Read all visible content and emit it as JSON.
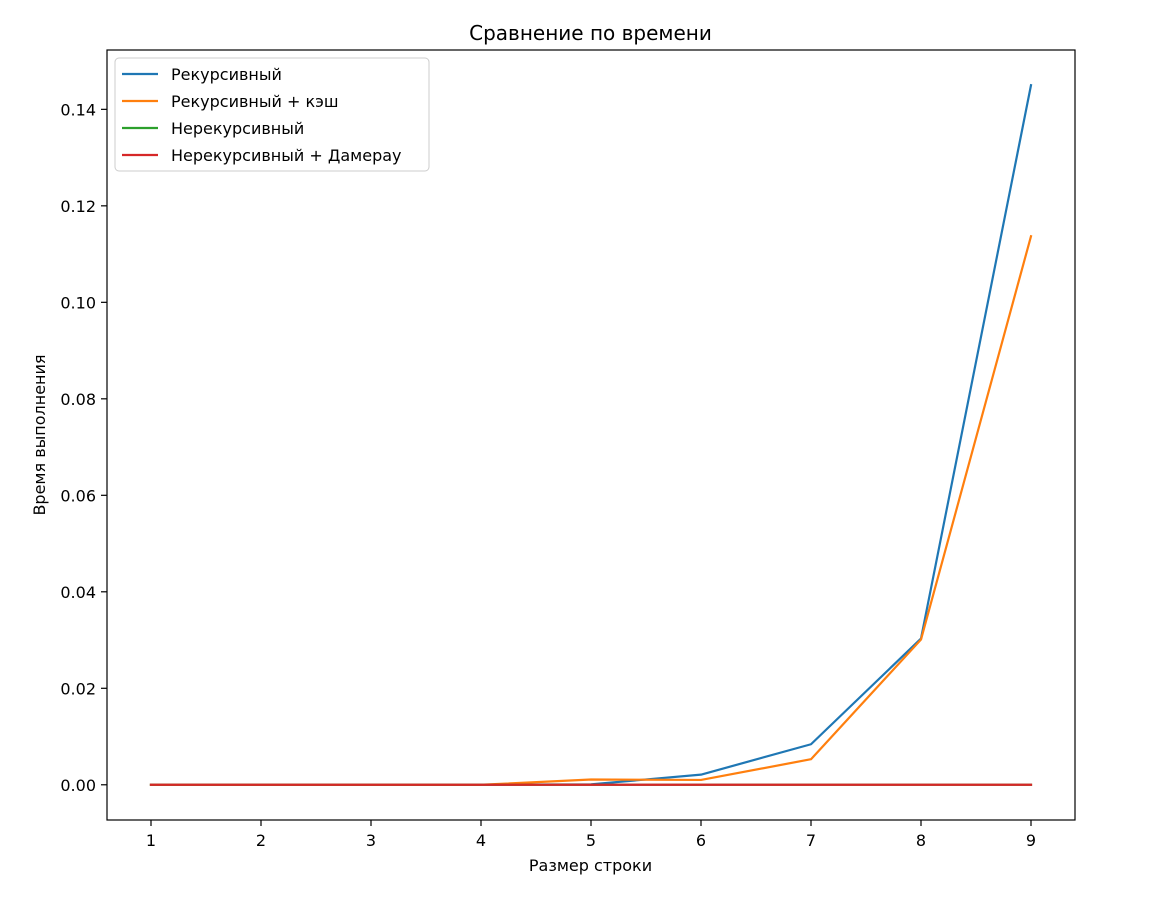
{
  "chart_data": {
    "type": "line",
    "title": "Сравнение по времени",
    "xlabel": "Размер строки",
    "ylabel": "Время выполнения",
    "x": [
      1,
      2,
      3,
      4,
      5,
      6,
      7,
      8,
      9
    ],
    "xlim": [
      0.6,
      9.4
    ],
    "ylim": [
      -0.0073,
      0.1523
    ],
    "xticks": [
      "1",
      "2",
      "3",
      "4",
      "5",
      "6",
      "7",
      "8",
      "9"
    ],
    "yticks": [
      {
        "value": 0.0,
        "label": "0.00"
      },
      {
        "value": 0.02,
        "label": "0.02"
      },
      {
        "value": 0.04,
        "label": "0.04"
      },
      {
        "value": 0.06,
        "label": "0.06"
      },
      {
        "value": 0.08,
        "label": "0.08"
      },
      {
        "value": 0.1,
        "label": "0.10"
      },
      {
        "value": 0.12,
        "label": "0.12"
      },
      {
        "value": 0.14,
        "label": "0.14"
      }
    ],
    "grid": false,
    "legend_position": "top-left",
    "series": [
      {
        "name": "Рекурсивный",
        "color": "#1f77b4",
        "values": [
          0.0,
          0.0,
          0.0,
          0.0,
          0.0001,
          0.0021,
          0.0084,
          0.0303,
          0.145
        ]
      },
      {
        "name": "Рекурсивный + кэш",
        "color": "#ff7f0e",
        "values": [
          0.0,
          0.0,
          0.0,
          0.0,
          0.0011,
          0.001,
          0.0053,
          0.0301,
          0.1137
        ]
      },
      {
        "name": "Нерекурсивный",
        "color": "#2ca02c",
        "values": [
          0.0,
          0.0,
          0.0,
          0.0,
          0.0,
          0.0,
          0.0,
          0.0,
          0.0
        ]
      },
      {
        "name": "Нерекурсивный + Дамерау",
        "color": "#d62728",
        "values": [
          0.0,
          0.0,
          0.0,
          0.0,
          0.0,
          0.0,
          0.0,
          0.0,
          0.0
        ]
      }
    ]
  }
}
